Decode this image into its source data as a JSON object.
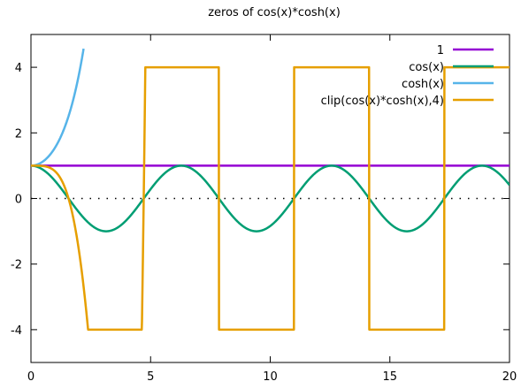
{
  "chart_data": {
    "type": "line",
    "title": "zeros of cos(x)*cosh(x)",
    "xlabel": "",
    "ylabel": "",
    "xlim": [
      0,
      20
    ],
    "ylim": [
      -5,
      5
    ],
    "xticks": [
      0,
      5,
      10,
      15,
      20
    ],
    "xtick_labels": [
      "0",
      "5",
      "10",
      "15",
      "20"
    ],
    "yticks": [
      -4,
      -2,
      0,
      2,
      4
    ],
    "ytick_labels": [
      "-4",
      "-2",
      "0",
      "2",
      "4"
    ],
    "zero_line": "dotted",
    "grid": false,
    "legend_position": "top-right",
    "series": [
      {
        "name": "1",
        "color": "#9400d3",
        "x": [
          0,
          20
        ],
        "y": [
          1,
          1
        ]
      },
      {
        "name": "cos(x)",
        "color": "#009e73",
        "x": [
          0,
          1.571,
          3.142,
          4.712,
          6.283,
          7.854,
          9.425,
          10.996,
          12.566,
          14.137,
          15.708,
          17.279,
          18.85,
          20
        ],
        "y": [
          1,
          0,
          -1,
          0,
          1,
          0,
          -1,
          0,
          1,
          0,
          -1,
          0,
          1,
          0.408
        ]
      },
      {
        "name": "cosh(x)",
        "color": "#56b4e9",
        "x": [
          0,
          0.5,
          1.0,
          1.5,
          2.0,
          2.2
        ],
        "y": [
          1,
          1.128,
          1.543,
          2.352,
          3.762,
          4.568
        ]
      },
      {
        "name": "clip(cos(x)*cosh(x),4)",
        "color": "#e69f00",
        "x": [
          0,
          1.0,
          1.5,
          2.0,
          2.3,
          4.67,
          4.74,
          7.85,
          7.88,
          10.99,
          11.0,
          14.13,
          14.14,
          17.27,
          17.28,
          20
        ],
        "y": [
          1,
          0.834,
          0.166,
          -1.566,
          -4,
          -4,
          4,
          4,
          -4,
          -4,
          4,
          4,
          -4,
          -4,
          4,
          4
        ]
      }
    ]
  }
}
